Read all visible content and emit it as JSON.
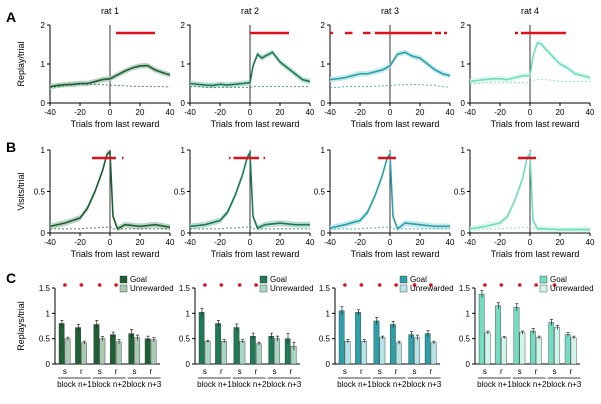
{
  "figure": {
    "panel_letters": [
      "A",
      "B",
      "C"
    ],
    "colors": {
      "rat1": "#1f5f34",
      "rat2": "#1e7a55",
      "rat3": "#2aa0a8",
      "rat4": "#74dcc0",
      "significance": "#e0101a",
      "zero_line": "#000000"
    }
  },
  "chart_data": [
    {
      "type": "line",
      "panel": "A",
      "title": "rat 1",
      "xlabel": "Trials from last reward",
      "ylabel": "Replay/trial",
      "xlim": [
        -40,
        40
      ],
      "ylim": [
        0,
        2
      ],
      "xticks": [
        "-40",
        "-20",
        "0",
        "20",
        "40"
      ],
      "yticks": [
        "0",
        "1",
        "2"
      ],
      "x": [
        -40,
        -35,
        -30,
        -25,
        -20,
        -15,
        -10,
        -5,
        0,
        5,
        10,
        15,
        20,
        25,
        30,
        35,
        40
      ],
      "series": [
        {
          "style": "solid",
          "values": [
            0.42,
            0.45,
            0.47,
            0.48,
            0.5,
            0.5,
            0.55,
            0.6,
            0.62,
            0.72,
            0.82,
            0.9,
            0.95,
            0.96,
            0.85,
            0.78,
            0.72
          ]
        },
        {
          "style": "dashed",
          "values": [
            0.4,
            0.42,
            0.45,
            0.46,
            0.48,
            0.48,
            0.48,
            0.47,
            0.46,
            0.45,
            0.44,
            0.43,
            0.43,
            0.42,
            0.42,
            0.42,
            0.41
          ]
        }
      ],
      "significance": [
        [
          4,
          30
        ]
      ]
    },
    {
      "type": "line",
      "panel": "A",
      "title": "rat 2",
      "xlabel": "Trials from last reward",
      "ylabel": "",
      "xlim": [
        -40,
        40
      ],
      "ylim": [
        0,
        2
      ],
      "xticks": [
        "-40",
        "-20",
        "0",
        "20",
        "40"
      ],
      "yticks": [
        "0",
        "1",
        "2"
      ],
      "x": [
        -40,
        -35,
        -30,
        -25,
        -20,
        -15,
        -10,
        -5,
        0,
        2,
        5,
        8,
        10,
        15,
        20,
        25,
        30,
        35,
        40
      ],
      "series": [
        {
          "style": "solid",
          "values": [
            0.5,
            0.48,
            0.46,
            0.45,
            0.48,
            0.46,
            0.48,
            0.5,
            0.52,
            0.95,
            1.25,
            1.15,
            1.2,
            1.3,
            1.05,
            0.9,
            0.75,
            0.6,
            0.55
          ]
        },
        {
          "style": "dashed",
          "values": [
            0.42,
            0.42,
            0.4,
            0.4,
            0.4,
            0.4,
            0.4,
            0.4,
            0.4,
            0.42,
            0.42,
            0.42,
            0.42,
            0.42,
            0.42,
            0.42,
            0.42,
            0.42,
            0.42
          ]
        }
      ],
      "significance": [
        [
          0,
          26
        ]
      ]
    },
    {
      "type": "line",
      "panel": "A",
      "title": "rat 3",
      "xlabel": "Trials from last reward",
      "ylabel": "",
      "xlim": [
        -40,
        40
      ],
      "ylim": [
        0,
        2
      ],
      "xticks": [
        "-40",
        "-20",
        "0",
        "20",
        "40"
      ],
      "yticks": [
        "0",
        "1",
        "2"
      ],
      "x": [
        -40,
        -35,
        -30,
        -25,
        -20,
        -15,
        -10,
        -5,
        0,
        5,
        10,
        15,
        20,
        25,
        30,
        35,
        40
      ],
      "series": [
        {
          "style": "solid",
          "values": [
            0.6,
            0.62,
            0.65,
            0.7,
            0.75,
            0.75,
            0.8,
            0.85,
            0.95,
            1.25,
            1.3,
            1.2,
            1.15,
            1.0,
            0.85,
            0.75,
            0.7
          ]
        },
        {
          "style": "dashed",
          "values": [
            0.4,
            0.4,
            0.42,
            0.42,
            0.42,
            0.42,
            0.43,
            0.44,
            0.45,
            0.46,
            0.47,
            0.47,
            0.47,
            0.46,
            0.45,
            0.42,
            0.4
          ]
        }
      ],
      "significance": [
        [
          -40,
          -38
        ],
        [
          -30,
          -25
        ],
        [
          -18,
          -13
        ],
        [
          -10,
          28
        ],
        [
          30,
          34
        ],
        [
          36,
          38
        ]
      ]
    },
    {
      "type": "line",
      "panel": "A",
      "title": "rat 4",
      "xlabel": "Trials from last reward",
      "ylabel": "",
      "xlim": [
        -40,
        40
      ],
      "ylim": [
        0,
        2
      ],
      "xticks": [
        "-40",
        "-20",
        "0",
        "20",
        "40"
      ],
      "yticks": [
        "0",
        "1",
        "2"
      ],
      "x": [
        -40,
        -35,
        -30,
        -25,
        -20,
        -15,
        -10,
        -5,
        0,
        2,
        5,
        8,
        10,
        15,
        20,
        25,
        30,
        35,
        40
      ],
      "series": [
        {
          "style": "solid",
          "values": [
            0.55,
            0.58,
            0.6,
            0.62,
            0.62,
            0.6,
            0.65,
            0.7,
            0.7,
            1.2,
            1.55,
            1.5,
            1.4,
            1.2,
            1.0,
            0.9,
            0.75,
            0.7,
            0.65
          ]
        },
        {
          "style": "dashed",
          "values": [
            0.5,
            0.5,
            0.52,
            0.52,
            0.52,
            0.52,
            0.52,
            0.52,
            0.52,
            0.58,
            0.6,
            0.6,
            0.6,
            0.58,
            0.55,
            0.55,
            0.55,
            0.55,
            0.55
          ]
        }
      ],
      "significance": [
        [
          -10,
          -8
        ],
        [
          -6,
          24
        ]
      ]
    },
    {
      "type": "line",
      "panel": "B",
      "xlabel": "Trials from last reward",
      "ylabel": "Visits/trial",
      "xlim": [
        -40,
        40
      ],
      "ylim": [
        0,
        1
      ],
      "xticks": [
        "-40",
        "-20",
        "0",
        "20",
        "40"
      ],
      "yticks": [
        "0",
        "0.5",
        "1"
      ],
      "x": [
        -40,
        -30,
        -20,
        -15,
        -10,
        -5,
        -2,
        0,
        2,
        5,
        10,
        20,
        30,
        40
      ],
      "series": [
        {
          "style": "solid",
          "values": [
            0.08,
            0.12,
            0.18,
            0.3,
            0.5,
            0.75,
            0.95,
            0.98,
            0.2,
            0.05,
            0.1,
            0.08,
            0.1,
            0.07
          ]
        },
        {
          "style": "dashed",
          "values": [
            0.05,
            0.05,
            0.05,
            0.06,
            0.06,
            0.07,
            0.07,
            0.08,
            0.05,
            0.05,
            0.05,
            0.05,
            0.05,
            0.05
          ]
        }
      ],
      "significance": [
        [
          -12,
          4
        ],
        [
          8,
          9
        ]
      ]
    },
    {
      "type": "line",
      "panel": "B",
      "xlabel": "Trials from last reward",
      "ylabel": "",
      "xlim": [
        -40,
        40
      ],
      "ylim": [
        0,
        1
      ],
      "xticks": [
        "-40",
        "-20",
        "0",
        "20",
        "40"
      ],
      "yticks": [
        "0",
        "0.5",
        "1"
      ],
      "x": [
        -40,
        -30,
        -20,
        -15,
        -10,
        -5,
        -2,
        0,
        2,
        5,
        10,
        20,
        30,
        40
      ],
      "series": [
        {
          "style": "solid",
          "values": [
            0.08,
            0.1,
            0.15,
            0.25,
            0.45,
            0.7,
            0.9,
            0.97,
            0.2,
            0.06,
            0.1,
            0.12,
            0.1,
            0.1
          ]
        },
        {
          "style": "dashed",
          "values": [
            0.05,
            0.05,
            0.05,
            0.06,
            0.06,
            0.07,
            0.07,
            0.08,
            0.05,
            0.05,
            0.05,
            0.05,
            0.05,
            0.05
          ]
        }
      ],
      "significance": [
        [
          -14,
          -13
        ],
        [
          -11,
          6
        ],
        [
          9,
          10
        ]
      ]
    },
    {
      "type": "line",
      "panel": "B",
      "xlabel": "Trials from last reward",
      "ylabel": "",
      "xlim": [
        -40,
        40
      ],
      "ylim": [
        0,
        1
      ],
      "xticks": [
        "-40",
        "-20",
        "0",
        "20",
        "40"
      ],
      "yticks": [
        "0",
        "0.5",
        "1"
      ],
      "x": [
        -40,
        -30,
        -20,
        -15,
        -10,
        -5,
        -2,
        0,
        2,
        5,
        10,
        20,
        30,
        40
      ],
      "series": [
        {
          "style": "solid",
          "values": [
            0.06,
            0.1,
            0.15,
            0.25,
            0.45,
            0.7,
            0.9,
            0.95,
            0.2,
            0.05,
            0.12,
            0.1,
            0.08,
            0.08
          ]
        },
        {
          "style": "dashed",
          "values": [
            0.05,
            0.05,
            0.05,
            0.06,
            0.06,
            0.07,
            0.07,
            0.08,
            0.05,
            0.05,
            0.05,
            0.05,
            0.05,
            0.05
          ]
        }
      ],
      "significance": [
        [
          -8,
          4
        ]
      ]
    },
    {
      "type": "line",
      "panel": "B",
      "xlabel": "Trials from last reward",
      "ylabel": "",
      "xlim": [
        -40,
        40
      ],
      "ylim": [
        0,
        1
      ],
      "xticks": [
        "-40",
        "-20",
        "0",
        "20",
        "40"
      ],
      "yticks": [
        "0",
        "0.5",
        "1"
      ],
      "x": [
        -40,
        -30,
        -20,
        -15,
        -10,
        -5,
        -2,
        0,
        2,
        5,
        10,
        20,
        30,
        40
      ],
      "series": [
        {
          "style": "solid",
          "values": [
            0.05,
            0.08,
            0.12,
            0.2,
            0.4,
            0.65,
            0.9,
            0.96,
            0.15,
            0.05,
            0.05,
            0.04,
            0.04,
            0.04
          ]
        },
        {
          "style": "dashed",
          "values": [
            0.05,
            0.05,
            0.05,
            0.06,
            0.06,
            0.07,
            0.07,
            0.08,
            0.05,
            0.05,
            0.05,
            0.05,
            0.05,
            0.05
          ]
        }
      ],
      "significance": [
        [
          -8,
          4
        ]
      ]
    },
    {
      "type": "bar",
      "panel": "C",
      "ylabel": "Replays/trial",
      "ylim": [
        0,
        1.5
      ],
      "yticks": [
        "0",
        "0.5",
        "1",
        "1.5"
      ],
      "categories": [
        "s",
        "r",
        "s",
        "r",
        "s",
        "r"
      ],
      "groups": [
        "block n+1",
        "block n+2",
        "block n+3"
      ],
      "series": [
        {
          "name": "Goal",
          "values": [
            0.8,
            0.72,
            0.78,
            0.58,
            0.6,
            0.5
          ]
        },
        {
          "name": "Unrewarded",
          "values": [
            0.5,
            0.42,
            0.5,
            0.44,
            0.52,
            0.48
          ]
        }
      ],
      "errors": [
        [
          0.06,
          0.06,
          0.08,
          0.05,
          0.08,
          0.05
        ],
        [
          0.03,
          0.03,
          0.04,
          0.04,
          0.05,
          0.04
        ]
      ],
      "significance": [
        true,
        true,
        true,
        true,
        false,
        false
      ]
    },
    {
      "type": "bar",
      "panel": "C",
      "ylabel": "",
      "ylim": [
        0,
        1.5
      ],
      "yticks": [
        "0",
        "0.5",
        "1",
        "1.5"
      ],
      "categories": [
        "s",
        "r",
        "s",
        "r",
        "s",
        "r"
      ],
      "groups": [
        "block n+1",
        "block n+2",
        "block n+3"
      ],
      "series": [
        {
          "name": "Goal",
          "values": [
            1.02,
            0.8,
            0.72,
            0.55,
            0.55,
            0.5
          ]
        },
        {
          "name": "Unrewarded",
          "values": [
            0.45,
            0.45,
            0.45,
            0.4,
            0.5,
            0.35
          ]
        }
      ],
      "errors": [
        [
          0.08,
          0.06,
          0.07,
          0.06,
          0.06,
          0.1
        ],
        [
          0.02,
          0.03,
          0.03,
          0.03,
          0.05,
          0.08
        ]
      ],
      "significance": [
        true,
        true,
        true,
        true,
        false,
        false
      ]
    },
    {
      "type": "bar",
      "panel": "C",
      "ylabel": "",
      "ylim": [
        0,
        1.5
      ],
      "yticks": [
        "0",
        "0.5",
        "1",
        "1.5"
      ],
      "categories": [
        "s",
        "r",
        "s",
        "r",
        "s",
        "r"
      ],
      "groups": [
        "block n+1",
        "block n+2",
        "block n+3"
      ],
      "series": [
        {
          "name": "Goal",
          "values": [
            1.05,
            1.02,
            0.85,
            0.78,
            0.58,
            0.6
          ]
        },
        {
          "name": "Unrewarded",
          "values": [
            0.45,
            0.45,
            0.52,
            0.42,
            0.52,
            0.42
          ]
        }
      ],
      "errors": [
        [
          0.08,
          0.05,
          0.07,
          0.06,
          0.06,
          0.06
        ],
        [
          0.03,
          0.03,
          0.03,
          0.03,
          0.05,
          0.03
        ]
      ],
      "significance": [
        true,
        true,
        true,
        true,
        true,
        true
      ]
    },
    {
      "type": "bar",
      "panel": "C",
      "ylabel": "",
      "ylim": [
        0,
        1.5
      ],
      "yticks": [
        "0",
        "0.5",
        "1",
        "1.5"
      ],
      "categories": [
        "s",
        "r",
        "s",
        "r",
        "s",
        "r"
      ],
      "groups": [
        "block n+1",
        "block n+2",
        "block n+3"
      ],
      "series": [
        {
          "name": "Goal",
          "values": [
            1.38,
            1.15,
            1.12,
            0.65,
            0.82,
            0.58
          ]
        },
        {
          "name": "Unrewarded",
          "values": [
            0.62,
            0.52,
            0.62,
            0.52,
            0.72,
            0.52
          ]
        }
      ],
      "errors": [
        [
          0.07,
          0.06,
          0.07,
          0.05,
          0.06,
          0.04
        ],
        [
          0.03,
          0.02,
          0.03,
          0.03,
          0.04,
          0.03
        ]
      ],
      "significance": [
        true,
        true,
        true,
        true,
        true,
        false
      ]
    }
  ]
}
